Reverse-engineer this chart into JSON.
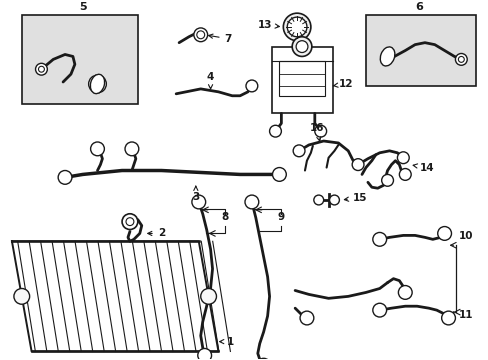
{
  "bg_color": "#ffffff",
  "line_color": "#1a1a1a",
  "box_fill": "#e8e8e8",
  "figsize": [
    4.89,
    3.6
  ],
  "dpi": 100
}
